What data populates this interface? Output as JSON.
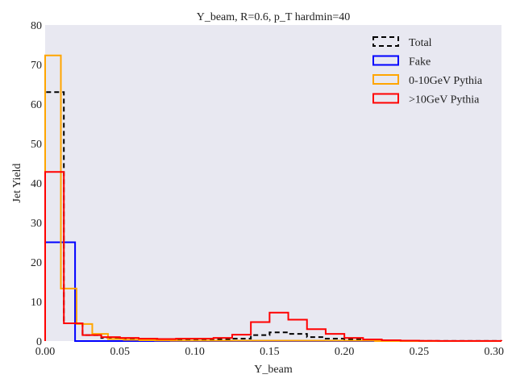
{
  "chart_data": {
    "type": "step-histogram",
    "title": "Y_beam, R=0.6, p_T hardmin=40",
    "xlabel": "Y_beam",
    "ylabel": "Jet Yield",
    "xlim": [
      0.0,
      0.305
    ],
    "ylim": [
      0,
      80
    ],
    "xticks": [
      "0.00",
      "0.05",
      "0.10",
      "0.15",
      "0.20",
      "0.25",
      "0.30"
    ],
    "yticks": [
      "0",
      "10",
      "20",
      "30",
      "40",
      "50",
      "60",
      "70",
      "80"
    ],
    "grid": false,
    "legend_position": "top-right",
    "background": "#e8e8f1",
    "series": [
      {
        "name": "Total",
        "color": "#000000",
        "dashed": true,
        "edges": [
          0.0,
          0.0125,
          0.025,
          0.0375,
          0.05,
          0.0625,
          0.075,
          0.0875,
          0.1,
          0.1125,
          0.125,
          0.1375,
          0.15,
          0.1625,
          0.175,
          0.1875,
          0.2,
          0.2125,
          0.225,
          0.2375,
          0.25,
          0.2625,
          0.275,
          0.2875,
          0.3,
          0.305
        ],
        "values": [
          63,
          4.5,
          1.5,
          0.8,
          0.5,
          0.4,
          0.3,
          0.3,
          0.3,
          0.4,
          0.6,
          1.5,
          2.2,
          1.8,
          1.0,
          0.6,
          0.4,
          0.2,
          0.1,
          0.05,
          0.02,
          0.02,
          0.02,
          0.02,
          0.02
        ]
      },
      {
        "name": "Fake",
        "color": "#0000ff",
        "dashed": false,
        "edges": [
          0.0,
          0.02,
          0.04,
          0.06,
          0.08,
          0.1,
          0.12,
          0.14,
          0.16,
          0.18,
          0.2,
          0.22,
          0.24,
          0.26,
          0.28,
          0.3,
          0.305
        ],
        "values": [
          25,
          0,
          0,
          0,
          0,
          0,
          0,
          0,
          0,
          0,
          0,
          0,
          0,
          0,
          0,
          0
        ]
      },
      {
        "name": "0-10GeV Pythia",
        "color": "#ffa500",
        "dashed": false,
        "edges": [
          0.0,
          0.0105,
          0.021,
          0.0315,
          0.042,
          0.0525,
          0.063,
          0.0735,
          0.084,
          0.0945,
          0.105,
          0.1155,
          0.126,
          0.1365,
          0.147,
          0.1575,
          0.168,
          0.1785,
          0.189,
          0.1995,
          0.21,
          0.2205,
          0.305
        ],
        "values": [
          72.3,
          13.3,
          4.3,
          1.8,
          0.5,
          0.3,
          0.2,
          0.15,
          0.1,
          0.1,
          0.1,
          0.1,
          0.1,
          0.1,
          0.1,
          0.1,
          0.1,
          0.1,
          0.1,
          0.1,
          0.1,
          0.0
        ]
      },
      {
        "name": ">10GeV Pythia",
        "color": "#ff0000",
        "dashed": false,
        "edges": [
          0.0,
          0.0125,
          0.025,
          0.0375,
          0.05,
          0.0625,
          0.075,
          0.0875,
          0.1,
          0.1125,
          0.125,
          0.1375,
          0.15,
          0.1625,
          0.175,
          0.1875,
          0.2,
          0.2125,
          0.225,
          0.2375,
          0.25,
          0.2625,
          0.275,
          0.2875,
          0.3,
          0.305
        ],
        "values": [
          42.8,
          4.5,
          1.5,
          1.0,
          0.8,
          0.6,
          0.5,
          0.6,
          0.6,
          0.8,
          1.6,
          4.8,
          7.2,
          5.4,
          3.0,
          1.8,
          0.8,
          0.4,
          0.2,
          0.1,
          0.05,
          0.02,
          0.02,
          0.02,
          0.02
        ]
      }
    ]
  }
}
